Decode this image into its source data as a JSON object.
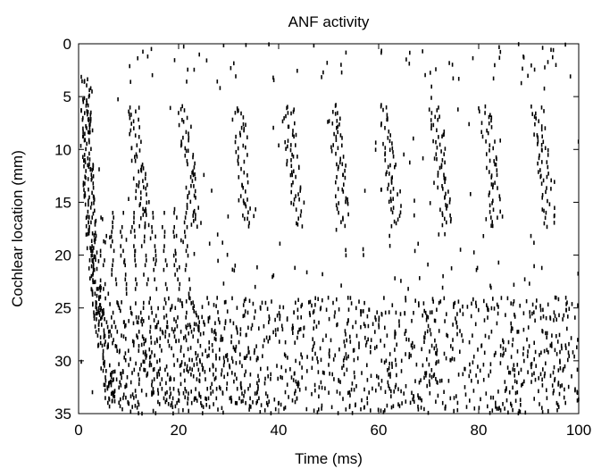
{
  "chart_data": {
    "type": "scatter",
    "title": "ANF activity",
    "xlabel": "Time (ms)",
    "ylabel": "Cochlear location (mm)",
    "xlim": [
      0,
      100
    ],
    "ylim": [
      0,
      35
    ],
    "y_inverted": true,
    "grid": false,
    "legend": "none",
    "xticks": [
      "0",
      "20",
      "40",
      "60",
      "80",
      "100"
    ],
    "yticks": [
      "0",
      "5",
      "10",
      "15",
      "20",
      "25",
      "30",
      "35"
    ],
    "marker": "short vertical tick",
    "marker_color": "#000000",
    "description_of_points": "Raster of auditory-nerve-fiber spikes: spike times (ms) vs cochlear place (mm).",
    "clusters": {
      "apical_bursts": {
        "onsets_ms": [
          9.5,
          19.5,
          30.5,
          40.5,
          49.5,
          60.0,
          70.0,
          80.0,
          90.5
        ],
        "place_range_mm": [
          6,
          17.5
        ]
      },
      "basal_travelling_wave_onset": {
        "start_ms": 0.5,
        "place_range_mm": [
          3,
          34
        ]
      },
      "basal_phase_locked_region": {
        "time_range_ms": [
          3,
          100
        ],
        "place_range_mm": [
          24,
          35
        ]
      }
    }
  }
}
